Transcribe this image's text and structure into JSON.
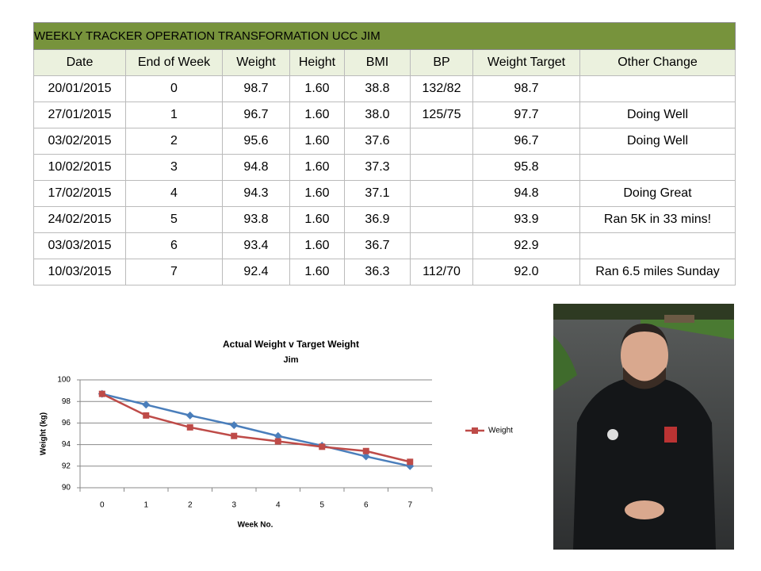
{
  "table": {
    "title": "WEEKLY TRACKER OPERATION TRANSFORMATION UCC JIM",
    "headers": [
      "Date",
      "End of Week",
      "Weight",
      "Height",
      "BMI",
      "BP",
      "Weight Target",
      "Other Change"
    ],
    "rows": [
      [
        "20/01/2015",
        "0",
        "98.7",
        "1.60",
        "38.8",
        "132/82",
        "98.7",
        null
      ],
      [
        "27/01/2015",
        "1",
        "96.7",
        "1.60",
        "38.0",
        "125/75",
        "97.7",
        "Doing Well"
      ],
      [
        "03/02/2015",
        "2",
        "95.6",
        "1.60",
        "37.6",
        null,
        "96.7",
        "Doing Well"
      ],
      [
        "10/02/2015",
        "3",
        "94.8",
        "1.60",
        "37.3",
        null,
        "95.8",
        null
      ],
      [
        "17/02/2015",
        "4",
        "94.3",
        "1.60",
        "37.1",
        null,
        "94.8",
        "Doing Great"
      ],
      [
        "24/02/2015",
        "5",
        "93.8",
        "1.60",
        "36.9",
        null,
        "93.9",
        "Ran 5K in 33 mins!"
      ],
      [
        "03/03/2015",
        "6",
        "93.4",
        "1.60",
        "36.7",
        null,
        "92.9",
        null
      ],
      [
        "10/03/2015",
        "7",
        "92.4",
        "1.60",
        "36.3",
        "112/70",
        "92.0",
        "Ran 6.5 miles Sunday"
      ]
    ]
  },
  "chart_data": {
    "type": "line",
    "title": "Actual Weight v Target Weight",
    "subtitle": "Jim",
    "x_label": "Week No.",
    "y_label": "Weight (kg)",
    "categories": [
      "0",
      "1",
      "2",
      "3",
      "4",
      "5",
      "6",
      "7"
    ],
    "series": [
      {
        "name": "Weight",
        "color": "#be4b48",
        "marker": "square",
        "values": [
          98.7,
          96.7,
          95.6,
          94.8,
          94.3,
          93.8,
          93.4,
          92.4
        ]
      },
      {
        "color": "#4a7ebb",
        "marker": "diamond",
        "values": [
          98.7,
          97.7,
          96.7,
          95.8,
          94.8,
          93.9,
          92.9,
          92.0
        ]
      }
    ],
    "ylim": [
      90,
      100
    ],
    "yticks": [
      90,
      92,
      94,
      96,
      98,
      100
    ],
    "grid": true
  }
}
